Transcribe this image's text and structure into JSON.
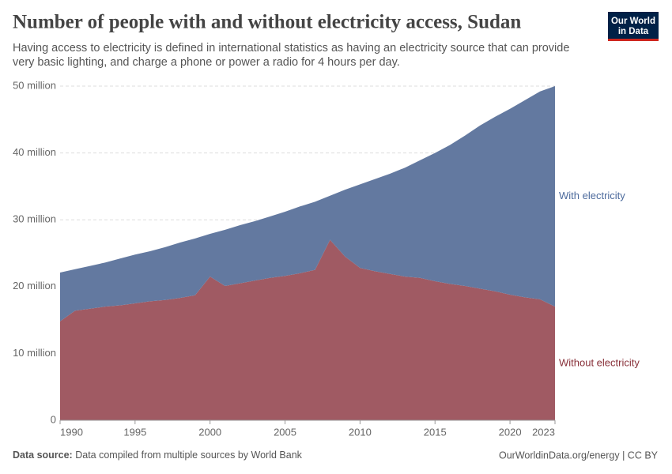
{
  "chart_data": {
    "type": "stacked-area",
    "title": "Number of people with and without electricity access, Sudan",
    "subtitle_lines": [
      "Having access to electricity is defined in international statistics as having an electricity source that can provide",
      "very basic lighting, and charge a phone or power a radio for 4 hours per day."
    ],
    "logo_lines": [
      "Our World",
      "in Data"
    ],
    "source_label": "Data source:",
    "source": "Data compiled from multiple sources by World Bank",
    "footer_right": "OurWorldinData.org/energy | CC BY",
    "x": [
      1990,
      1991,
      1992,
      1993,
      1994,
      1995,
      1996,
      1997,
      1998,
      1999,
      2000,
      2001,
      2002,
      2003,
      2004,
      2005,
      2006,
      2007,
      2008,
      2009,
      2010,
      2011,
      2012,
      2013,
      2014,
      2015,
      2016,
      2017,
      2018,
      2019,
      2020,
      2021,
      2022,
      2023
    ],
    "series": [
      {
        "name": "Without electricity",
        "color": "#a05a63",
        "label_color": "#883039",
        "values": [
          14800000,
          16400000,
          16700000,
          17000000,
          17200000,
          17500000,
          17800000,
          18000000,
          18300000,
          18700000,
          21500000,
          20100000,
          20500000,
          20900000,
          21300000,
          21600000,
          22000000,
          22500000,
          27000000,
          24500000,
          22800000,
          22300000,
          21900000,
          21500000,
          21300000,
          20800000,
          20400000,
          20100000,
          19700000,
          19300000,
          18800000,
          18400000,
          18100000,
          17000000
        ]
      },
      {
        "name": "With electricity",
        "color": "#6379a0",
        "label_color": "#4c6a9c",
        "values": [
          7300000,
          6200000,
          6400000,
          6600000,
          7000000,
          7300000,
          7500000,
          7900000,
          8300000,
          8500000,
          6400000,
          8400000,
          8700000,
          8900000,
          9200000,
          9600000,
          10000000,
          10200000,
          6600000,
          10000000,
          12500000,
          13800000,
          15000000,
          16300000,
          17600000,
          19200000,
          20800000,
          22500000,
          24400000,
          26100000,
          27800000,
          29500000,
          31100000,
          33000000
        ]
      }
    ],
    "xlim": [
      1990,
      2023
    ],
    "xticks": [
      1990,
      1995,
      2000,
      2005,
      2010,
      2015,
      2020,
      2023
    ],
    "ylim": [
      0,
      50000000
    ],
    "yticks": [
      0,
      {
        "value": 10000000,
        "label": "10 million"
      },
      {
        "value": 20000000,
        "label": "20 million"
      },
      {
        "value": 30000000,
        "label": "30 million"
      },
      {
        "value": 40000000,
        "label": "40 million"
      },
      {
        "value": 50000000,
        "label": "50 million"
      }
    ],
    "grid": true
  }
}
